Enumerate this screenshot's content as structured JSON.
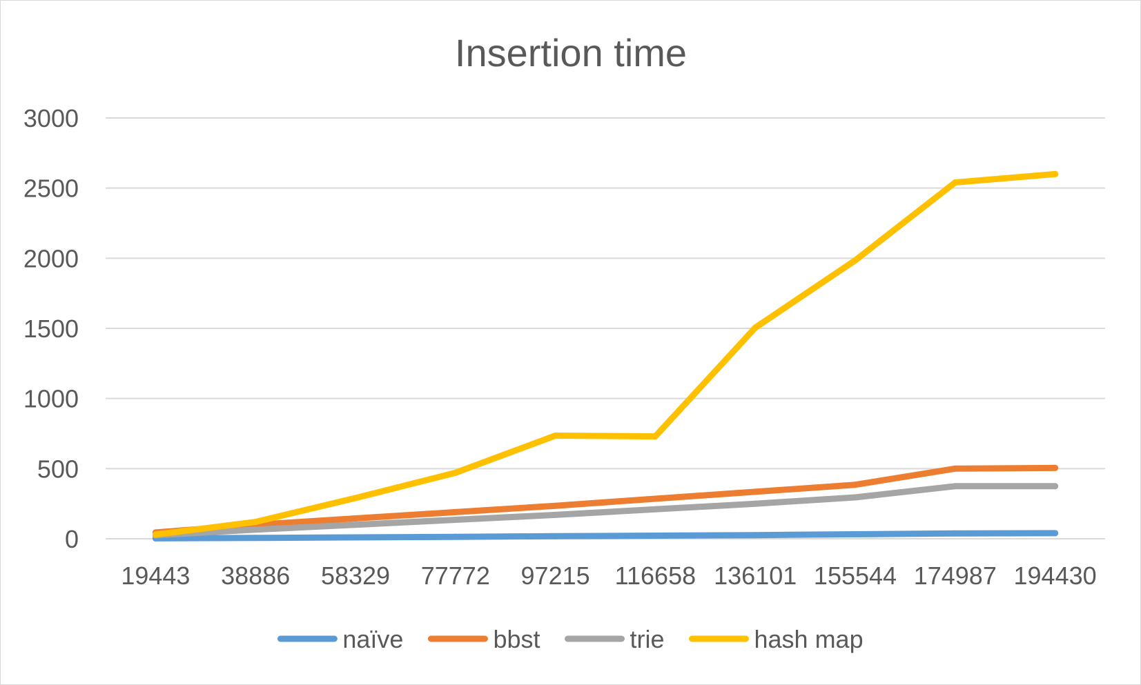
{
  "chart_data": {
    "type": "line",
    "title": "Insertion time",
    "xlabel": "",
    "ylabel": "",
    "categories": [
      "19443",
      "38886",
      "58329",
      "77772",
      "97215",
      "116658",
      "136101",
      "155544",
      "174987",
      "194430"
    ],
    "ylim": [
      0,
      3000
    ],
    "yticks": [
      0,
      500,
      1000,
      1500,
      2000,
      2500,
      3000
    ],
    "grid": true,
    "legend_position": "bottom",
    "series": [
      {
        "name": "naïve",
        "color": "#5b9bd5",
        "values": [
          3,
          6,
          10,
          14,
          18,
          22,
          26,
          32,
          38,
          40
        ]
      },
      {
        "name": "bbst",
        "color": "#ed7d31",
        "values": [
          45,
          100,
          145,
          190,
          235,
          285,
          335,
          385,
          500,
          505
        ]
      },
      {
        "name": "trie",
        "color": "#a5a5a5",
        "values": [
          25,
          65,
          100,
          135,
          170,
          210,
          250,
          295,
          375,
          375
        ]
      },
      {
        "name": "hash map",
        "color": "#ffc000",
        "values": [
          30,
          120,
          290,
          470,
          735,
          730,
          1505,
          1985,
          2540,
          2600
        ]
      }
    ]
  }
}
